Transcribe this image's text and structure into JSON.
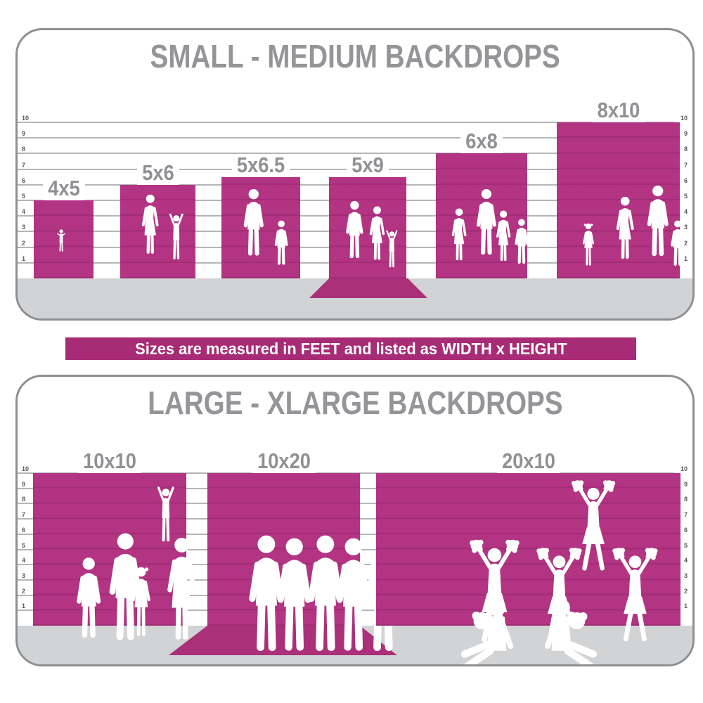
{
  "banner": {
    "text": "Sizes are measured in FEET and listed as WIDTH x HEIGHT"
  },
  "panels": [
    {
      "title": "SMALL - MEDIUM BACKDROPS",
      "scale_unit": "feet",
      "scale_ticks": [
        "1",
        "2",
        "3",
        "4",
        "5",
        "6",
        "7",
        "8",
        "9",
        "10"
      ],
      "bars": [
        {
          "label": "4x5",
          "silhouette": "toddler-girl"
        },
        {
          "label": "5x6",
          "silhouette": "mother-with-child-arms-up"
        },
        {
          "label": "5x6.5",
          "silhouette": "father-with-boy"
        },
        {
          "label": "5x9",
          "silhouette": "couple-with-child-on-floor-sweep"
        },
        {
          "label": "6x8",
          "silhouette": "family-of-four"
        },
        {
          "label": "8x10",
          "silhouette": "family-of-four"
        }
      ]
    },
    {
      "title": "LARGE - XLARGE BACKDROPS",
      "scale_unit": "feet",
      "scale_ticks": [
        "1",
        "2",
        "3",
        "4",
        "5",
        "6",
        "7",
        "8",
        "9",
        "10"
      ],
      "bars": [
        {
          "label": "10x10",
          "silhouette": "family-group-child-on-shoulders"
        },
        {
          "label": "10x20",
          "silhouette": "sports-team-of-five-on-floor-sweep"
        },
        {
          "label": "20x10",
          "silhouette": "cheerleader-squad-pyramid"
        }
      ]
    }
  ],
  "colors": {
    "magenta": "#B23483",
    "sweep_magenta": "#A93079",
    "banner_magenta": "#A82B75",
    "floor_gray": "#D2D3D5",
    "title_gray": "#939598",
    "label_gray": "#8F9194",
    "grid_gray": "#9C9EA1",
    "border_gray": "#8D8F92",
    "tick_gray": "#58595B",
    "silhouette_white": "#FFFFFF"
  },
  "chart_data": [
    {
      "type": "bar",
      "title": "SMALL - MEDIUM BACKDROPS",
      "categories": [
        "4x5",
        "5x6",
        "5x6.5",
        "5x9",
        "6x8",
        "8x10"
      ],
      "series": [
        {
          "name": "width_ft",
          "values": [
            4,
            5,
            5,
            5,
            6,
            8
          ]
        },
        {
          "name": "height_ft",
          "values": [
            5,
            6,
            6.5,
            9,
            8,
            10
          ]
        },
        {
          "name": "wall_height_shown_ft",
          "values": [
            5,
            6,
            6.5,
            6.5,
            8,
            10
          ]
        }
      ],
      "ylabel": "feet",
      "ylim": [
        0,
        10
      ],
      "grid": true,
      "annotations": "5x9 drawn with extra length sweeping onto the floor"
    },
    {
      "type": "bar",
      "title": "LARGE - XLARGE BACKDROPS",
      "categories": [
        "10x10",
        "10x20",
        "20x10"
      ],
      "series": [
        {
          "name": "width_ft",
          "values": [
            10,
            10,
            20
          ]
        },
        {
          "name": "height_ft",
          "values": [
            10,
            20,
            10
          ]
        },
        {
          "name": "wall_height_shown_ft",
          "values": [
            10,
            10,
            10
          ]
        }
      ],
      "ylabel": "feet",
      "ylim": [
        0,
        10
      ],
      "grid": true,
      "annotations": "10x20 drawn with extra length sweeping onto the floor"
    }
  ]
}
